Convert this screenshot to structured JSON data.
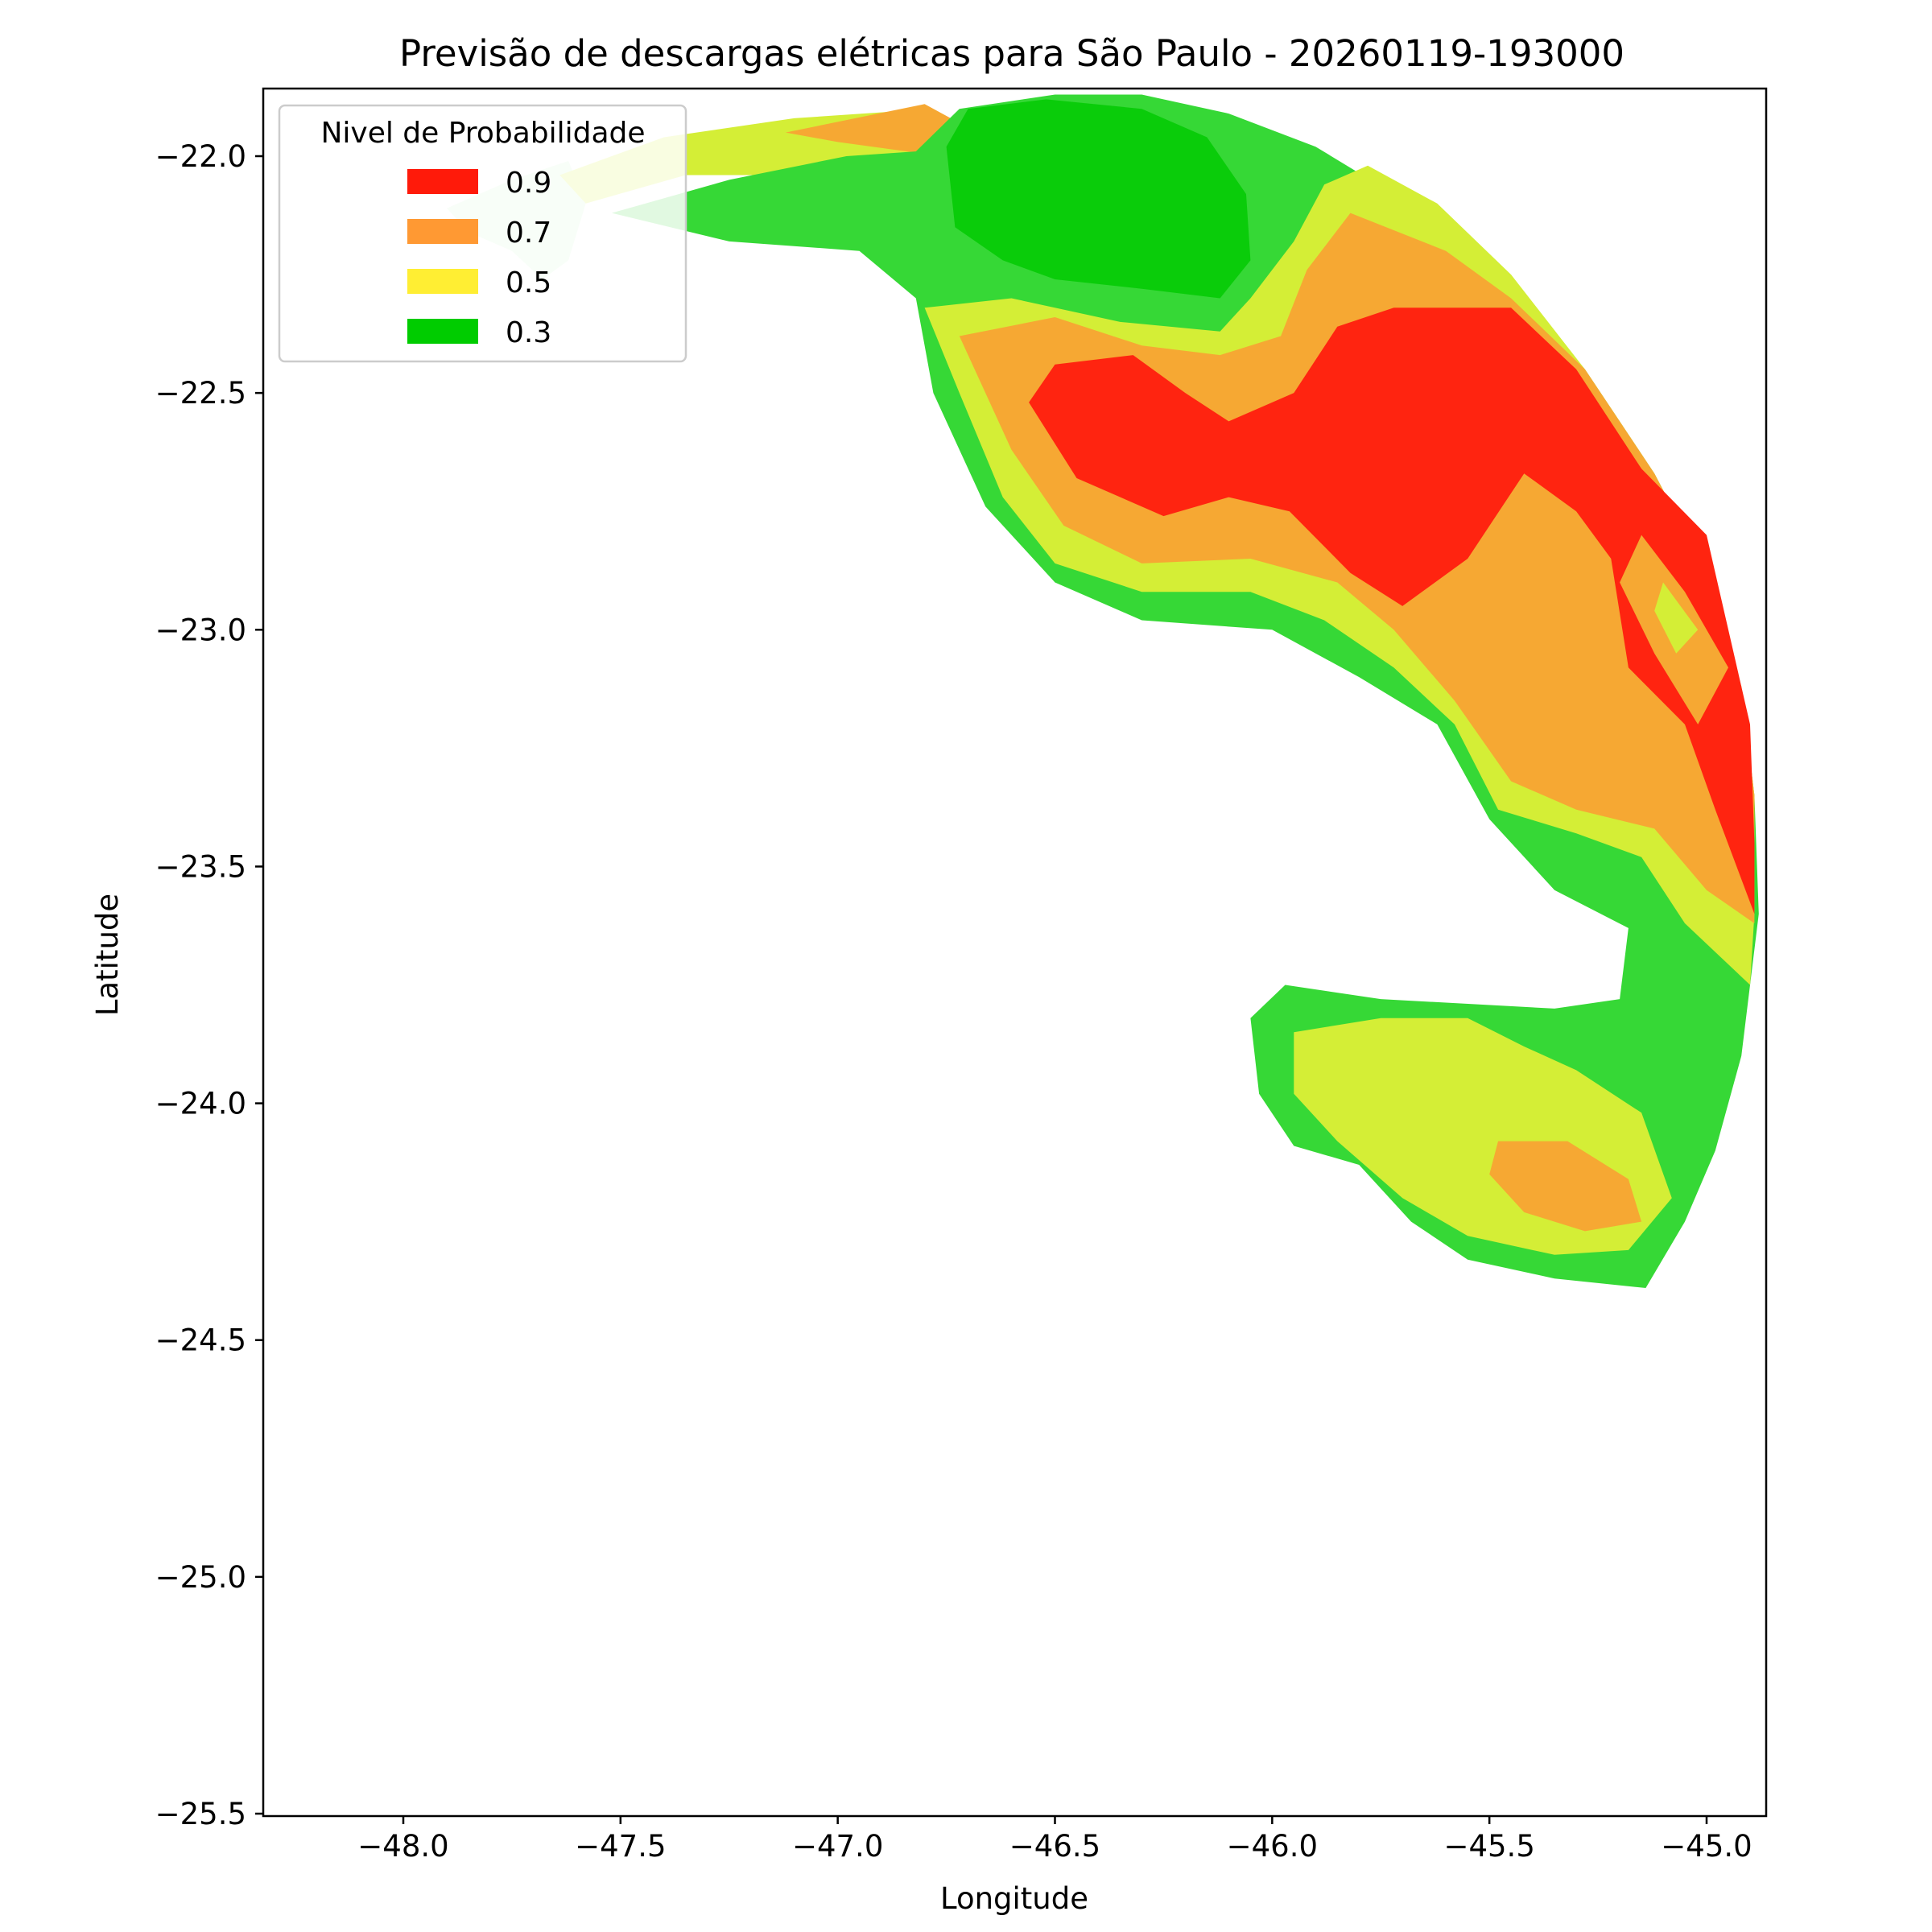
{
  "chart_data": {
    "type": "heatmap",
    "title": "Previsão de descargas elétricas para São Paulo - 20260119-193000",
    "xlabel": "Longitude",
    "ylabel": "Latitude",
    "xlim": [
      -48.32,
      -44.88
    ],
    "ylim": [
      -25.53,
      -21.86
    ],
    "x_ticks": [
      -48.0,
      -47.5,
      -47.0,
      -46.5,
      -46.0,
      -45.5,
      -45.0
    ],
    "x_tick_labels": [
      "−48.0",
      "−47.5",
      "−47.0",
      "−46.5",
      "−46.0",
      "−45.5",
      "−45.0"
    ],
    "y_ticks": [
      -22.0,
      -22.5,
      -23.0,
      -23.5,
      -24.0,
      -24.5,
      -25.0,
      -25.5
    ],
    "y_tick_labels": [
      "−22.0",
      "−22.5",
      "−23.0",
      "−23.5",
      "−24.0",
      "−24.5",
      "−25.0",
      "−25.5"
    ],
    "legend": {
      "title": "Nivel de Probabilidade",
      "placement": "top-left",
      "entries": [
        {
          "label": "0.9",
          "color": "#ff1a0a"
        },
        {
          "label": "0.7",
          "color": "#ff9933"
        },
        {
          "label": "0.5",
          "color": "#ffee33"
        },
        {
          "label": "0.3",
          "color": "#00cc00"
        }
      ]
    },
    "level_colors": {
      "0.1": "#d2f5d2",
      "0.3": "#36d836",
      "0.3_core": "#0acc0a",
      "0.5": "#d4ee36",
      "0.7": "#f6a833",
      "0.9": "#ff2410"
    },
    "regions": [
      {
        "level": "0.1",
        "lonlat": [
          [
            -47.9,
            -22.11
          ],
          [
            -47.75,
            -22.05
          ],
          [
            -47.62,
            -22.01
          ],
          [
            -47.58,
            -22.1
          ],
          [
            -47.62,
            -22.22
          ],
          [
            -47.68,
            -22.26
          ],
          [
            -47.75,
            -22.2
          ],
          [
            -47.85,
            -22.16
          ]
        ]
      },
      {
        "level": "0.5",
        "lonlat": [
          [
            -47.64,
            -22.04
          ],
          [
            -47.4,
            -21.96
          ],
          [
            -47.1,
            -21.92
          ],
          [
            -46.78,
            -21.9
          ],
          [
            -46.8,
            -22.02
          ],
          [
            -47.05,
            -22.04
          ],
          [
            -47.35,
            -22.04
          ],
          [
            -47.58,
            -22.1
          ]
        ]
      },
      {
        "level": "0.7",
        "lonlat": [
          [
            -47.12,
            -21.95
          ],
          [
            -46.8,
            -21.89
          ],
          [
            -46.72,
            -21.93
          ],
          [
            -46.76,
            -22.0
          ],
          [
            -47.0,
            -21.97
          ]
        ]
      },
      {
        "level": "0.3",
        "lonlat": [
          [
            -47.52,
            -22.12
          ],
          [
            -47.25,
            -22.05
          ],
          [
            -46.98,
            -22.0
          ],
          [
            -46.82,
            -21.99
          ],
          [
            -46.72,
            -21.9
          ],
          [
            -46.5,
            -21.87
          ],
          [
            -46.3,
            -21.87
          ],
          [
            -46.1,
            -21.91
          ],
          [
            -45.9,
            -21.98
          ],
          [
            -45.72,
            -22.08
          ],
          [
            -45.55,
            -22.2
          ],
          [
            -45.42,
            -22.3
          ],
          [
            -45.28,
            -22.45
          ],
          [
            -45.12,
            -22.67
          ],
          [
            -45.0,
            -22.88
          ],
          [
            -44.92,
            -23.12
          ],
          [
            -44.89,
            -23.35
          ],
          [
            -44.88,
            -23.6
          ],
          [
            -44.92,
            -23.9
          ],
          [
            -44.98,
            -24.1
          ],
          [
            -45.05,
            -24.25
          ],
          [
            -45.14,
            -24.39
          ],
          [
            -45.35,
            -24.37
          ],
          [
            -45.55,
            -24.33
          ],
          [
            -45.68,
            -24.25
          ],
          [
            -45.8,
            -24.13
          ],
          [
            -45.95,
            -24.09
          ],
          [
            -46.03,
            -23.98
          ],
          [
            -46.05,
            -23.82
          ],
          [
            -45.97,
            -23.75
          ],
          [
            -45.75,
            -23.78
          ],
          [
            -45.35,
            -23.8
          ],
          [
            -45.2,
            -23.78
          ],
          [
            -45.18,
            -23.63
          ],
          [
            -45.35,
            -23.55
          ],
          [
            -45.5,
            -23.4
          ],
          [
            -45.62,
            -23.2
          ],
          [
            -45.8,
            -23.1
          ],
          [
            -46.0,
            -23.0
          ],
          [
            -46.3,
            -22.98
          ],
          [
            -46.5,
            -22.9
          ],
          [
            -46.66,
            -22.74
          ],
          [
            -46.78,
            -22.5
          ],
          [
            -46.82,
            -22.3
          ],
          [
            -46.95,
            -22.2
          ],
          [
            -47.25,
            -22.18
          ]
        ]
      },
      {
        "level": "0.3_core",
        "lonlat": [
          [
            -46.73,
            -22.15
          ],
          [
            -46.75,
            -21.98
          ],
          [
            -46.7,
            -21.9
          ],
          [
            -46.52,
            -21.88
          ],
          [
            -46.3,
            -21.9
          ],
          [
            -46.15,
            -21.96
          ],
          [
            -46.06,
            -22.08
          ],
          [
            -46.05,
            -22.22
          ],
          [
            -46.12,
            -22.3
          ],
          [
            -46.3,
            -22.28
          ],
          [
            -46.5,
            -22.26
          ],
          [
            -46.62,
            -22.22
          ]
        ]
      },
      {
        "level": "0.5",
        "lonlat": [
          [
            -46.8,
            -22.32
          ],
          [
            -46.6,
            -22.3
          ],
          [
            -46.35,
            -22.35
          ],
          [
            -46.12,
            -22.37
          ],
          [
            -46.05,
            -22.3
          ],
          [
            -45.95,
            -22.18
          ],
          [
            -45.88,
            -22.06
          ],
          [
            -45.78,
            -22.02
          ],
          [
            -45.62,
            -22.1
          ],
          [
            -45.45,
            -22.25
          ],
          [
            -45.28,
            -22.45
          ],
          [
            -45.12,
            -22.67
          ],
          [
            -45.0,
            -22.88
          ],
          [
            -44.92,
            -23.12
          ],
          [
            -44.89,
            -23.35
          ],
          [
            -44.89,
            -23.6
          ],
          [
            -44.9,
            -23.75
          ],
          [
            -45.05,
            -23.62
          ],
          [
            -45.15,
            -23.48
          ],
          [
            -45.3,
            -23.43
          ],
          [
            -45.48,
            -23.38
          ],
          [
            -45.58,
            -23.2
          ],
          [
            -45.72,
            -23.08
          ],
          [
            -45.88,
            -22.98
          ],
          [
            -46.05,
            -22.92
          ],
          [
            -46.3,
            -22.92
          ],
          [
            -46.5,
            -22.86
          ],
          [
            -46.62,
            -22.72
          ],
          [
            -46.72,
            -22.5
          ]
        ]
      },
      {
        "level": "0.7",
        "lonlat": [
          [
            -46.72,
            -22.38
          ],
          [
            -46.5,
            -22.34
          ],
          [
            -46.3,
            -22.4
          ],
          [
            -46.12,
            -22.42
          ],
          [
            -45.98,
            -22.38
          ],
          [
            -45.92,
            -22.24
          ],
          [
            -45.82,
            -22.12
          ],
          [
            -45.6,
            -22.2
          ],
          [
            -45.45,
            -22.3
          ],
          [
            -45.28,
            -22.45
          ],
          [
            -45.12,
            -22.67
          ],
          [
            -45.0,
            -22.88
          ],
          [
            -44.92,
            -23.12
          ],
          [
            -44.89,
            -23.35
          ],
          [
            -44.89,
            -23.62
          ],
          [
            -45.0,
            -23.55
          ],
          [
            -45.12,
            -23.42
          ],
          [
            -45.3,
            -23.38
          ],
          [
            -45.45,
            -23.32
          ],
          [
            -45.58,
            -23.15
          ],
          [
            -45.72,
            -23.0
          ],
          [
            -45.85,
            -22.9
          ],
          [
            -46.05,
            -22.85
          ],
          [
            -46.3,
            -22.86
          ],
          [
            -46.48,
            -22.78
          ],
          [
            -46.6,
            -22.62
          ]
        ]
      },
      {
        "level": "0.9",
        "lonlat": [
          [
            -46.56,
            -22.52
          ],
          [
            -46.5,
            -22.44
          ],
          [
            -46.32,
            -22.42
          ],
          [
            -46.2,
            -22.5
          ],
          [
            -46.1,
            -22.56
          ],
          [
            -45.95,
            -22.5
          ],
          [
            -45.85,
            -22.36
          ],
          [
            -45.72,
            -22.32
          ],
          [
            -45.45,
            -22.32
          ],
          [
            -45.3,
            -22.45
          ],
          [
            -45.15,
            -22.66
          ],
          [
            -45.0,
            -22.8
          ],
          [
            -44.95,
            -23.0
          ],
          [
            -44.9,
            -23.2
          ],
          [
            -44.89,
            -23.45
          ],
          [
            -44.89,
            -23.6
          ],
          [
            -44.98,
            -23.38
          ],
          [
            -45.05,
            -23.2
          ],
          [
            -45.18,
            -23.08
          ],
          [
            -45.22,
            -22.85
          ],
          [
            -45.3,
            -22.75
          ],
          [
            -45.42,
            -22.67
          ],
          [
            -45.55,
            -22.85
          ],
          [
            -45.7,
            -22.95
          ],
          [
            -45.82,
            -22.88
          ],
          [
            -45.96,
            -22.75
          ],
          [
            -46.1,
            -22.72
          ],
          [
            -46.25,
            -22.76
          ],
          [
            -46.45,
            -22.68
          ]
        ]
      },
      {
        "level": "0.7",
        "lonlat": [
          [
            -45.15,
            -22.8
          ],
          [
            -45.05,
            -22.92
          ],
          [
            -44.95,
            -23.08
          ],
          [
            -45.02,
            -23.2
          ],
          [
            -45.12,
            -23.05
          ],
          [
            -45.2,
            -22.9
          ]
        ]
      },
      {
        "level": "0.5",
        "lonlat": [
          [
            -45.1,
            -22.9
          ],
          [
            -45.02,
            -23.0
          ],
          [
            -45.07,
            -23.05
          ],
          [
            -45.12,
            -22.96
          ]
        ]
      },
      {
        "level": "0.5",
        "lonlat": [
          [
            -45.95,
            -23.85
          ],
          [
            -45.75,
            -23.82
          ],
          [
            -45.55,
            -23.82
          ],
          [
            -45.42,
            -23.88
          ],
          [
            -45.3,
            -23.93
          ],
          [
            -45.15,
            -24.02
          ],
          [
            -45.08,
            -24.2
          ],
          [
            -45.18,
            -24.31
          ],
          [
            -45.35,
            -24.32
          ],
          [
            -45.55,
            -24.28
          ],
          [
            -45.7,
            -24.2
          ],
          [
            -45.85,
            -24.08
          ],
          [
            -45.95,
            -23.98
          ]
        ]
      },
      {
        "level": "0.7",
        "lonlat": [
          [
            -45.48,
            -24.08
          ],
          [
            -45.32,
            -24.08
          ],
          [
            -45.18,
            -24.16
          ],
          [
            -45.15,
            -24.25
          ],
          [
            -45.28,
            -24.27
          ],
          [
            -45.42,
            -24.23
          ],
          [
            -45.5,
            -24.15
          ]
        ]
      }
    ]
  }
}
